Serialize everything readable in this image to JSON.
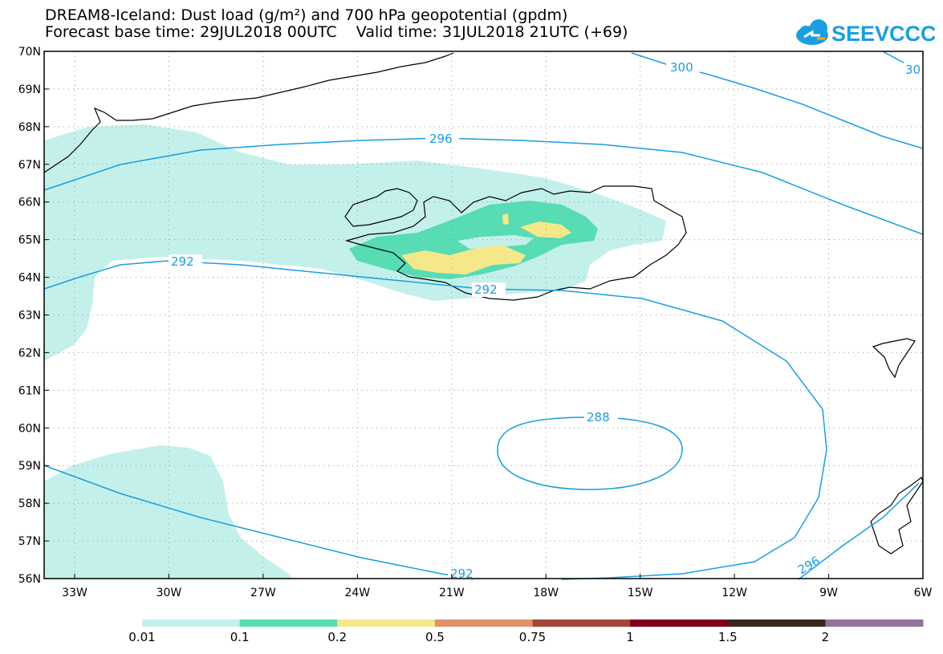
{
  "title": {
    "line1": "DREAM8-Iceland: Dust load (g/m²) and 700 hPa geopotential (gpdm)",
    "line2": "Forecast base time: 29JUL2018 00UTC    Valid time: 31JUL2018 21UTC (+69)"
  },
  "logo": {
    "text": "SEEVCCC",
    "icon": "cloud-logo-icon",
    "color": "#1a9ee0"
  },
  "map": {
    "lat_labels": [
      "70N",
      "69N",
      "68N",
      "67N",
      "66N",
      "65N",
      "64N",
      "63N",
      "62N",
      "61N",
      "60N",
      "59N",
      "58N",
      "57N",
      "56N"
    ],
    "lon_labels": [
      "33W",
      "30W",
      "27W",
      "24W",
      "21W",
      "18W",
      "15W",
      "12W",
      "9W",
      "6W"
    ],
    "contour_labels": [
      "300",
      "30",
      "296",
      "292",
      "292",
      "288",
      "292",
      "296"
    ],
    "contour_color": "#1a9ee0",
    "dust_colors": [
      "#c4f0eb",
      "#57dcb3",
      "#f5e88a"
    ]
  },
  "legend": {
    "colors": [
      "#c4f0eb",
      "#57dcb3",
      "#f5e88a",
      "#df916a",
      "#a1463b",
      "#80001c",
      "#3b271e",
      "#93729c"
    ],
    "labels": [
      "0.01",
      "0.1",
      "0.2",
      "0.5",
      "0.75",
      "1",
      "1.5",
      "2"
    ]
  }
}
